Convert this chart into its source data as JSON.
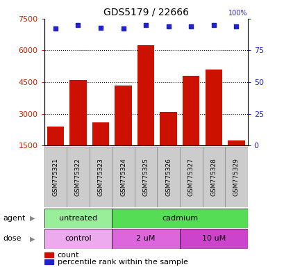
{
  "title": "GDS5179 / 22666",
  "samples": [
    "GSM775321",
    "GSM775322",
    "GSM775323",
    "GSM775324",
    "GSM775325",
    "GSM775326",
    "GSM775327",
    "GSM775328",
    "GSM775329"
  ],
  "counts": [
    2400,
    4600,
    2600,
    4350,
    6250,
    3100,
    4800,
    5100,
    1750
  ],
  "percentile_ranks": [
    92,
    95,
    93,
    92,
    95,
    94,
    94,
    95,
    94
  ],
  "ylim_left": [
    1500,
    7500
  ],
  "ylim_right": [
    0,
    100
  ],
  "yticks_left": [
    1500,
    3000,
    4500,
    6000,
    7500
  ],
  "yticks_right": [
    0,
    25,
    50,
    75,
    100
  ],
  "bar_color": "#CC1100",
  "scatter_color": "#2222CC",
  "agent_groups": [
    {
      "label": "untreated",
      "start": 0,
      "end": 3,
      "color": "#99EE99"
    },
    {
      "label": "cadmium",
      "start": 3,
      "end": 9,
      "color": "#55DD55"
    }
  ],
  "dose_groups": [
    {
      "label": "control",
      "start": 0,
      "end": 3,
      "color": "#EEAAEE"
    },
    {
      "label": "2 uM",
      "start": 3,
      "end": 6,
      "color": "#DD66DD"
    },
    {
      "label": "10 uM",
      "start": 6,
      "end": 9,
      "color": "#CC44CC"
    }
  ],
  "legend_count_color": "#CC1100",
  "legend_scatter_color": "#2222CC",
  "tick_label_color_left": "#CC2200",
  "tick_label_color_right": "#2222CC",
  "bar_bottom": 1500,
  "grid_yticks": [
    3000,
    4500,
    6000
  ],
  "sample_label_bg": "#CCCCCC"
}
